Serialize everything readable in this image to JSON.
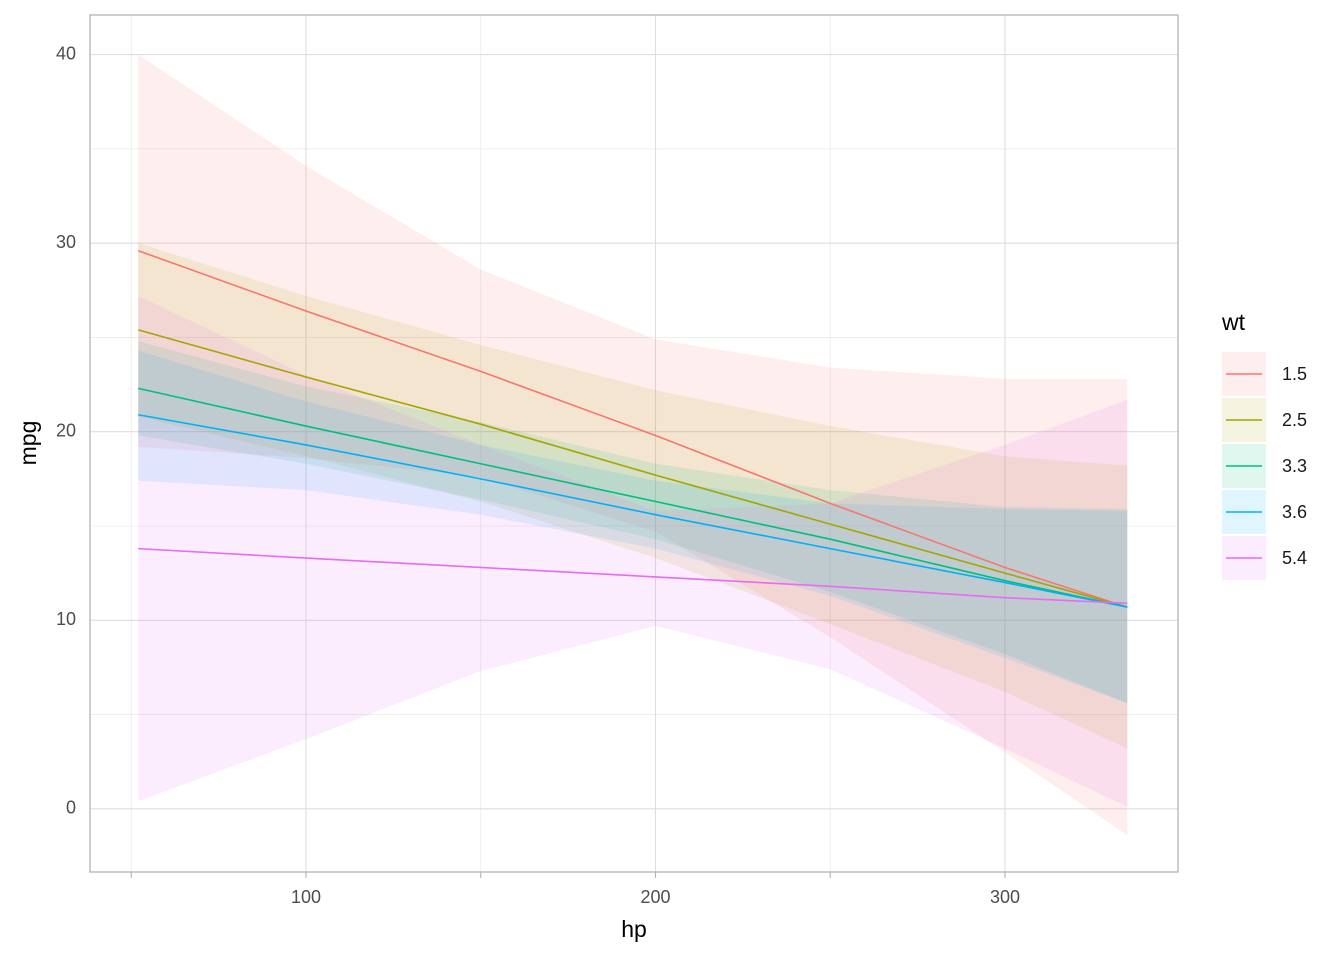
{
  "chart_data": {
    "type": "line",
    "x_label": "hp",
    "y_label": "mpg",
    "legend_title": "wt",
    "x": [
      52,
      100,
      150,
      200,
      250,
      300,
      335
    ],
    "xlim": [
      38.2,
      349.5
    ],
    "xticks": [
      100,
      200,
      300
    ],
    "xminor": [
      50,
      150,
      250
    ],
    "ylim": [
      -3.35,
      42.1
    ],
    "yticks": [
      0,
      10,
      20,
      30,
      40
    ],
    "yminor": [
      5,
      15,
      25,
      35
    ],
    "grid": true,
    "ribbon_opacity": 0.12,
    "series": [
      {
        "name": "1.5",
        "color": "#F8766D",
        "values": [
          29.6,
          26.4,
          23.2,
          19.8,
          16.2,
          12.8,
          10.7
        ],
        "lower": [
          19.2,
          18.6,
          17.6,
          14.7,
          9.1,
          3.0,
          -1.4
        ],
        "upper": [
          40.0,
          34.1,
          28.6,
          24.9,
          23.4,
          22.8,
          22.8
        ]
      },
      {
        "name": "2.5",
        "color": "#A3A500",
        "values": [
          25.4,
          22.9,
          20.4,
          17.7,
          15.1,
          12.5,
          10.7
        ],
        "lower": [
          20.8,
          18.7,
          16.3,
          13.3,
          9.8,
          6.2,
          3.2
        ],
        "upper": [
          30.0,
          27.2,
          24.6,
          22.2,
          20.3,
          18.7,
          18.2
        ]
      },
      {
        "name": "3.3",
        "color": "#00BF7D",
        "values": [
          22.3,
          20.3,
          18.3,
          16.3,
          14.3,
          12.1,
          10.7
        ],
        "lower": [
          19.8,
          18.3,
          16.4,
          14.3,
          11.5,
          8.2,
          5.6
        ],
        "upper": [
          24.8,
          22.4,
          20.5,
          18.3,
          16.9,
          16.0,
          15.9
        ]
      },
      {
        "name": "3.6",
        "color": "#00B0F6",
        "values": [
          20.9,
          19.3,
          17.5,
          15.6,
          13.8,
          12.0,
          10.7
        ],
        "lower": [
          17.4,
          16.9,
          15.6,
          13.8,
          11.3,
          8.0,
          5.6
        ],
        "upper": [
          24.3,
          21.6,
          19.3,
          17.4,
          16.2,
          15.9,
          15.8
        ]
      },
      {
        "name": "5.4",
        "color": "#E76BF3",
        "values": [
          13.8,
          13.3,
          12.8,
          12.3,
          11.8,
          11.2,
          10.9
        ],
        "lower": [
          0.4,
          3.7,
          7.3,
          9.7,
          7.4,
          3.2,
          0.1
        ],
        "upper": [
          27.2,
          23.0,
          19.3,
          15.8,
          16.2,
          19.3,
          21.7
        ]
      }
    ]
  }
}
